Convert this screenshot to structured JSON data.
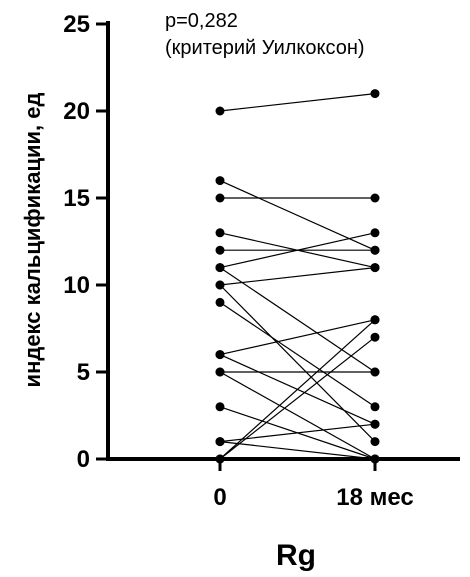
{
  "chart_data": {
    "type": "line",
    "title": "",
    "xlabel": "Rg",
    "ylabel": "индекс кальцификации, ед",
    "categories": [
      "0",
      "18 мес"
    ],
    "ylim": [
      0,
      25
    ],
    "yticks": [
      0,
      5,
      10,
      15,
      20,
      25
    ],
    "annotation": [
      "p=0,282",
      "(критерий Уилкоксон)"
    ],
    "grid": false,
    "series": [
      {
        "values": [
          20,
          21
        ]
      },
      {
        "values": [
          16,
          12
        ]
      },
      {
        "values": [
          15,
          15
        ]
      },
      {
        "values": [
          13,
          11
        ]
      },
      {
        "values": [
          12,
          12
        ]
      },
      {
        "values": [
          11,
          5
        ]
      },
      {
        "values": [
          11,
          13
        ]
      },
      {
        "values": [
          10,
          11
        ]
      },
      {
        "values": [
          10,
          1
        ]
      },
      {
        "values": [
          9,
          3
        ]
      },
      {
        "values": [
          6,
          8
        ]
      },
      {
        "values": [
          6,
          2
        ]
      },
      {
        "values": [
          5,
          5
        ]
      },
      {
        "values": [
          5,
          0
        ]
      },
      {
        "values": [
          3,
          0
        ]
      },
      {
        "values": [
          1,
          0
        ]
      },
      {
        "values": [
          1,
          2
        ]
      },
      {
        "values": [
          0,
          8
        ]
      },
      {
        "values": [
          0,
          7
        ]
      }
    ]
  }
}
